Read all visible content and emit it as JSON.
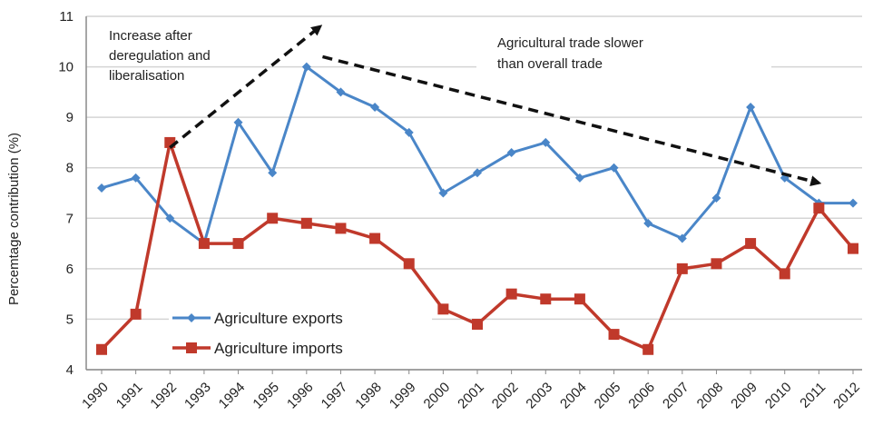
{
  "chart_data": {
    "type": "line",
    "title": "",
    "xlabel": "",
    "ylabel": "Percemtage contribution (%)",
    "ylim": [
      4,
      11
    ],
    "yticks": [
      "4",
      "5",
      "6",
      "7",
      "8",
      "9",
      "10",
      "11"
    ],
    "grid": true,
    "legend_position": "bottom-left",
    "categories": [
      "1990",
      "1991",
      "1992",
      "1993",
      "1994",
      "1995",
      "1996",
      "1997",
      "1998",
      "1999",
      "2000",
      "2001",
      "2002",
      "2003",
      "2004",
      "2005",
      "2006",
      "2007",
      "2008",
      "2009",
      "2010",
      "2011",
      "2012"
    ],
    "series": [
      {
        "name": "Agriculture exports",
        "color": "#4a86c8",
        "marker": "diamond",
        "values": [
          7.6,
          7.8,
          7.0,
          6.5,
          8.9,
          7.9,
          10.0,
          9.5,
          9.2,
          8.7,
          7.5,
          7.9,
          8.3,
          8.5,
          7.8,
          8.0,
          6.9,
          6.6,
          7.4,
          9.2,
          7.8,
          7.3,
          7.3
        ]
      },
      {
        "name": "Agriculture imports",
        "color": "#c0392b",
        "marker": "square",
        "values": [
          4.4,
          5.1,
          8.5,
          6.5,
          6.5,
          7.0,
          6.9,
          6.8,
          6.6,
          6.1,
          5.2,
          4.9,
          5.5,
          5.4,
          5.4,
          4.7,
          4.4,
          6.0,
          6.1,
          6.5,
          5.9,
          7.2,
          6.4
        ]
      }
    ],
    "annotations": [
      {
        "name": "deregulation",
        "lines": [
          "Increase after",
          "deregulation and",
          "liberalisation"
        ],
        "arrow_from": {
          "x": "1992",
          "y": 8.4
        },
        "arrow_to": {
          "x": "1996",
          "y": 10.8
        }
      },
      {
        "name": "slower",
        "lines": [
          "Agricultural trade slower",
          "than overall trade"
        ],
        "arrow_from": {
          "x": "1997",
          "y": 10.2
        },
        "arrow_to": {
          "x": "2011",
          "y": 7.7
        }
      }
    ]
  }
}
